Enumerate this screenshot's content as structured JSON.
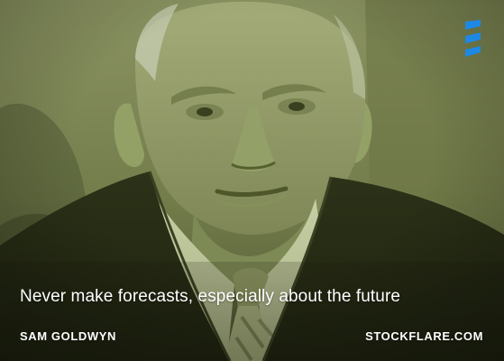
{
  "quote": {
    "text": "Never make forecasts, especially about the future"
  },
  "attribution": {
    "author": "SAM GOLDWYN",
    "site": "STOCKFLARE.COM"
  },
  "brand": {
    "logo_icon": "stockflare-logo-icon",
    "logo_color": "#1e88e5"
  }
}
